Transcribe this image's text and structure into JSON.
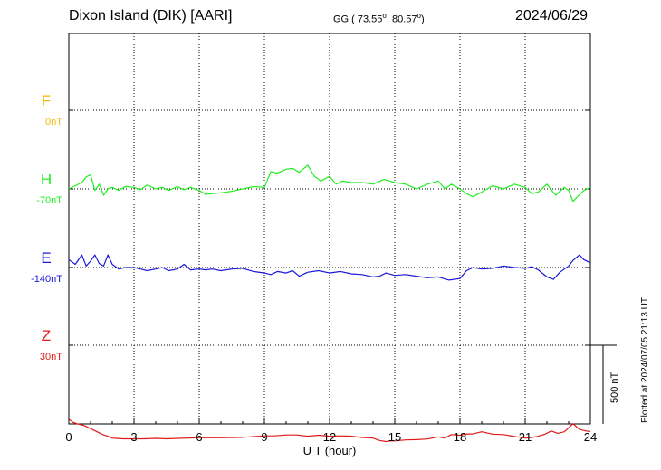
{
  "header": {
    "station": "Dixon Island (DIK)  [AARI]",
    "coords_prefix": "GG ( 73.55",
    "coords_mid": ",  80.57",
    "coords_suffix": ")",
    "degree_symbol": "o",
    "date": "2024/06/29"
  },
  "footer": {
    "plotted": "Plotted at 2024/07/05 21:13 UT"
  },
  "colors": {
    "F": "#f2b70a",
    "H": "#22ee22",
    "E": "#1a1ad8",
    "Z": "#e01a1a",
    "axis": "#000000"
  },
  "chart_data": {
    "type": "line",
    "xlabel": "U T (hour)",
    "xlim": [
      0,
      24
    ],
    "xticks": [
      "0",
      "3",
      "6",
      "9",
      "12",
      "15",
      "18",
      "21",
      "24"
    ],
    "scale_bar_label": "500 nT",
    "scale_bar_nT": 500,
    "series": [
      {
        "name": "F",
        "offset_label": "0nT",
        "color": "#f2b70a",
        "x": [],
        "y": []
      },
      {
        "name": "H",
        "offset_label": "-70nT",
        "color": "#22ee22",
        "x": [
          0,
          0.3,
          0.6,
          0.8,
          1.0,
          1.2,
          1.4,
          1.6,
          1.8,
          2.0,
          2.3,
          2.6,
          3.0,
          3.3,
          3.6,
          4.0,
          4.3,
          4.6,
          5.0,
          5.3,
          5.6,
          6.0,
          6.3,
          6.6,
          7.0,
          7.5,
          8.0,
          8.5,
          9.0,
          9.3,
          9.6,
          10.0,
          10.3,
          10.6,
          11.0,
          11.3,
          11.6,
          12.0,
          12.3,
          12.6,
          13.0,
          13.5,
          14.0,
          14.5,
          15.0,
          15.5,
          16.0,
          16.5,
          17.0,
          17.3,
          17.6,
          18.0,
          18.3,
          18.6,
          19.0,
          19.5,
          20.0,
          20.5,
          21.0,
          21.3,
          21.6,
          22.0,
          22.4,
          22.8,
          23.0,
          23.2,
          23.4,
          23.7,
          24.0
        ],
        "y": [
          -70,
          -50,
          -30,
          5,
          20,
          -80,
          -40,
          -110,
          -70,
          -60,
          -80,
          -55,
          -60,
          -75,
          -45,
          -70,
          -60,
          -80,
          -55,
          -75,
          -60,
          -80,
          -105,
          -100,
          -95,
          -85,
          -70,
          -55,
          -60,
          40,
          30,
          55,
          60,
          35,
          80,
          10,
          -20,
          10,
          -40,
          -20,
          -30,
          -30,
          -40,
          -10,
          -30,
          -40,
          -70,
          -40,
          -20,
          -70,
          -40,
          -70,
          -100,
          -120,
          -90,
          -50,
          -70,
          -40,
          -60,
          -100,
          -90,
          -40,
          -110,
          -60,
          -80,
          -150,
          -120,
          -80,
          -60
        ]
      },
      {
        "name": "E",
        "offset_label": "-140nT",
        "color": "#1a1ad8",
        "x": [
          0,
          0.3,
          0.6,
          0.8,
          1.0,
          1.2,
          1.4,
          1.6,
          1.8,
          2.0,
          2.3,
          2.6,
          3.0,
          3.3,
          3.6,
          4.0,
          4.3,
          4.6,
          5.0,
          5.3,
          5.6,
          6.0,
          6.3,
          6.6,
          7.0,
          7.5,
          8.0,
          8.5,
          9.0,
          9.3,
          9.6,
          10.0,
          10.3,
          10.6,
          11.0,
          11.5,
          12.0,
          12.5,
          13.0,
          13.5,
          14.0,
          14.3,
          14.6,
          15.0,
          15.5,
          16.0,
          16.5,
          17.0,
          17.5,
          18.0,
          18.3,
          18.6,
          19.0,
          19.5,
          20.0,
          20.5,
          21.0,
          21.3,
          21.6,
          22.0,
          22.3,
          22.6,
          23.0,
          23.2,
          23.5,
          23.7,
          24.0
        ],
        "y": [
          -90,
          -120,
          -60,
          -130,
          -100,
          -60,
          -115,
          -130,
          -60,
          -120,
          -150,
          -140,
          -140,
          -150,
          -160,
          -150,
          -140,
          -160,
          -150,
          -120,
          -155,
          -150,
          -155,
          -150,
          -160,
          -150,
          -145,
          -165,
          -175,
          -185,
          -165,
          -175,
          -160,
          -195,
          -170,
          -160,
          -175,
          -165,
          -180,
          -185,
          -200,
          -195,
          -175,
          -190,
          -185,
          -195,
          -205,
          -200,
          -220,
          -210,
          -160,
          -140,
          -150,
          -145,
          -130,
          -140,
          -145,
          -135,
          -155,
          -200,
          -215,
          -170,
          -130,
          -95,
          -60,
          -90,
          -110
        ]
      },
      {
        "name": "Z",
        "offset_label": "30nT",
        "color": "#e01a1a",
        "x": [
          0,
          0.2,
          0.4,
          0.7,
          1.0,
          1.3,
          1.6,
          1.8,
          2.0,
          2.5,
          3.0,
          3.5,
          4.0,
          4.5,
          5.0,
          6.0,
          7.0,
          8.0,
          9.0,
          9.5,
          10.0,
          10.5,
          11.0,
          11.5,
          12.0,
          12.5,
          13.0,
          13.5,
          14.0,
          14.3,
          14.6,
          14.8,
          15.0,
          15.5,
          16.0,
          16.5,
          17.0,
          17.3,
          17.6,
          18.0,
          18.3,
          18.6,
          19.0,
          19.5,
          20.0,
          20.5,
          21.0,
          21.3,
          21.6,
          21.9,
          22.2,
          22.5,
          22.8,
          23.0,
          23.2,
          23.5,
          23.8,
          24.0
        ],
        "y": [
          -440,
          -460,
          -470,
          -480,
          -500,
          -520,
          -540,
          -548,
          -560,
          -565,
          -565,
          -565,
          -562,
          -565,
          -562,
          -558,
          -558,
          -555,
          -546,
          -546,
          -540,
          -540,
          -548,
          -542,
          -548,
          -546,
          -548,
          -556,
          -560,
          -575,
          -582,
          -578,
          -578,
          -572,
          -570,
          -566,
          -552,
          -560,
          -538,
          -542,
          -534,
          -534,
          -520,
          -535,
          -538,
          -550,
          -560,
          -556,
          -548,
          -536,
          -515,
          -530,
          -520,
          -495,
          -468,
          -505,
          -515,
          -518
        ]
      }
    ]
  }
}
